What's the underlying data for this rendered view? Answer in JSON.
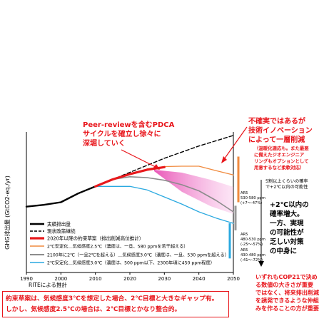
{
  "chart_data": {
    "type": "line",
    "ylabel": "GHG排出量 (GtCO2-eq./yr)",
    "x_ticks": [
      "1990",
      "2000",
      "2010",
      "2020",
      "2030",
      "2040",
      "2050"
    ],
    "xlim": [
      1990,
      2050
    ],
    "ylim": [
      0,
      80
    ],
    "source": "RITEによる推計",
    "series": [
      {
        "name": "実績排出量",
        "color": "#000000",
        "style": "solid",
        "x": [
          1990,
          1995,
          2000,
          2005,
          2010
        ],
        "y": [
          37.5,
          38.5,
          40,
          45,
          49
        ]
      },
      {
        "name": "現状政策継続",
        "color": "#000000",
        "style": "dashed",
        "x": [
          2010,
          2015,
          2020,
          2025,
          2030,
          2035,
          2040,
          2045,
          2050
        ],
        "y": [
          49,
          53,
          57,
          61,
          65,
          68.5,
          72,
          75,
          78
        ]
      },
      {
        "name": "2020年以降の約束草案（排出削減高位推計）",
        "color": "#e8191c",
        "style": "solid",
        "x": [
          2010,
          2015,
          2020,
          2025,
          2030
        ],
        "y": [
          49,
          53,
          56,
          58.5,
          60
        ]
      },
      {
        "name": "2℃安定化＿気候感度2.5℃（濃度は、一旦、580 ppmを若干超える）",
        "color": "#f08a3e",
        "style": "solid",
        "x": [
          2025,
          2030,
          2035,
          2040,
          2045,
          2050
        ],
        "y": [
          59,
          60.3,
          60.5,
          60.5,
          58,
          55.5
        ]
      },
      {
        "name": "2100年に2℃（一旦2℃を超える）＿気候感度3.0℃（濃度は、一旦、530 ppmを超える）",
        "color": "#8c8c8c",
        "style": "solid",
        "x": [
          2015,
          2020,
          2025,
          2030,
          2035,
          2040,
          2045,
          2050
        ],
        "y": [
          53,
          54.5,
          54,
          52.5,
          50,
          46.5,
          41,
          34.5
        ]
      },
      {
        "name": "2℃安定化＿気候感度3.0℃（濃度は、500 ppm以下、2300年頃に450 ppm程度）",
        "color": "#2aa9e0",
        "style": "solid",
        "x": [
          2010,
          2015,
          2020,
          2025,
          2030,
          2035,
          2040,
          2045,
          2050
        ],
        "y": [
          49,
          49,
          49,
          47,
          43,
          39,
          34.5,
          31,
          28
        ]
      }
    ],
    "bands": [
      {
        "name": "AR5 530-580 ppm",
        "extra": "(+7～-47%)",
        "color": "#f08a3e",
        "range": [
          40,
          66
        ]
      },
      {
        "name": "AR5 480-530 ppm",
        "extra": "(-25～-57%)",
        "color": "#9a9a9a",
        "range": [
          24,
          38
        ]
      },
      {
        "name": "AR5 430-480 ppm",
        "extra": "(-41～-72%)",
        "color": "#2aa9e0",
        "range": [
          8,
          28
        ]
      }
    ]
  },
  "annotations": {
    "pdca": [
      "Peer-reviewを含むPDCA",
      "サイクルを確立し徐々に",
      "深堀していく"
    ],
    "uncertainty": [
      "不確実ではあるが",
      "技術イノベーション",
      "によって一層削減"
    ],
    "uncertainty_small": [
      "（温暖化適応も。また最悪",
      "に備えたジオエンジニア",
      "リングもオプションとして",
      "用意するなど柔軟対応）"
    ],
    "probability": [
      "5割以上くらいの確率",
      "で+2℃以内の可能性"
    ],
    "plus2": [
      "+2℃以内の",
      "確率増大。",
      "一方、実現",
      "の可能性が",
      "乏しい対策",
      "の中身に"
    ]
  },
  "bottom_box": [
    "約束草案は、気候感度3℃を想定した場合、2℃目標と大きなギャップ有。",
    "しかし、気候感度2.5℃の場合は、2℃目標とかなり整合的。"
  ],
  "right_note": [
    "いずれもCOP21で決め",
    "る数値の大きさが重要",
    "ではなく、将来排出削減",
    "を誘発できるような仲組",
    "みを作ることの方が重要"
  ]
}
